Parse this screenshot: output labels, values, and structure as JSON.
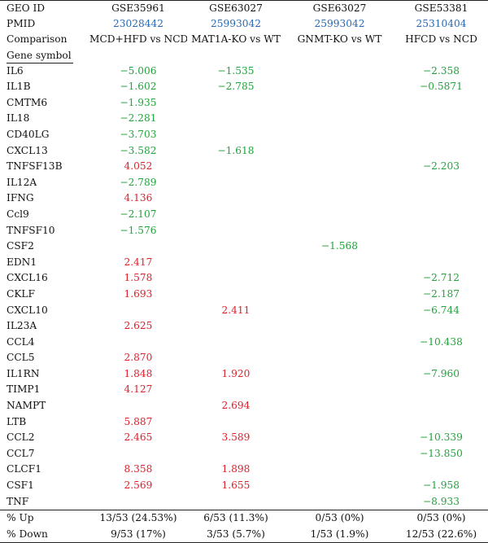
{
  "header": {
    "row_labels": [
      "GEO ID",
      "PMID",
      "Comparison"
    ],
    "columns": [
      {
        "geo": "GSE35961",
        "pmid": "23028442",
        "comparison": "MCD+HFD vs NCD"
      },
      {
        "geo": "GSE63027",
        "pmid": "25993042",
        "comparison": "MAT1A-KO vs WT"
      },
      {
        "geo": "GSE63027",
        "pmid": "25993042",
        "comparison": "GNMT-KO vs WT"
      },
      {
        "geo": "GSE53381",
        "pmid": "25310404",
        "comparison": "HFCD vs NCD"
      }
    ],
    "gene_symbol_label": "Gene symbol"
  },
  "colors": {
    "up": "#e0202a",
    "down": "#23a33c",
    "pmid": "#2a6ab0"
  },
  "genes": [
    {
      "symbol": "IL6",
      "values": [
        "−5.006",
        "−1.535",
        "",
        "−2.358"
      ]
    },
    {
      "symbol": "IL1B",
      "values": [
        "−1.602",
        "−2.785",
        "",
        "−0.5871"
      ]
    },
    {
      "symbol": "CMTM6",
      "values": [
        "−1.935",
        "",
        "",
        ""
      ]
    },
    {
      "symbol": "IL18",
      "values": [
        "−2.281",
        "",
        "",
        ""
      ]
    },
    {
      "symbol": "CD40LG",
      "values": [
        "−3.703",
        "",
        "",
        ""
      ]
    },
    {
      "symbol": "CXCL13",
      "values": [
        "−3.582",
        "−1.618",
        "",
        ""
      ]
    },
    {
      "symbol": "TNFSF13B",
      "values": [
        "4.052",
        "",
        "",
        "−2.203"
      ]
    },
    {
      "symbol": "IL12A",
      "values": [
        "−2.789",
        "",
        "",
        ""
      ]
    },
    {
      "symbol": "IFNG",
      "values": [
        "4.136",
        "",
        "",
        ""
      ]
    },
    {
      "symbol": "Ccl9",
      "values": [
        "−2.107",
        "",
        "",
        ""
      ]
    },
    {
      "symbol": "TNFSF10",
      "values": [
        "−1.576",
        "",
        "",
        ""
      ]
    },
    {
      "symbol": "CSF2",
      "values": [
        "",
        "",
        "−1.568",
        ""
      ]
    },
    {
      "symbol": "EDN1",
      "values": [
        "2.417",
        "",
        "",
        ""
      ]
    },
    {
      "symbol": "CXCL16",
      "values": [
        "1.578",
        "",
        "",
        "−2.712"
      ]
    },
    {
      "symbol": "CKLF",
      "values": [
        "1.693",
        "",
        "",
        "−2.187"
      ]
    },
    {
      "symbol": "CXCL10",
      "values": [
        "",
        "2.411",
        "",
        "−6.744"
      ]
    },
    {
      "symbol": "IL23A",
      "values": [
        "2.625",
        "",
        "",
        ""
      ]
    },
    {
      "symbol": "CCL4",
      "values": [
        "",
        "",
        "",
        "−10.438"
      ]
    },
    {
      "symbol": "CCL5",
      "values": [
        "2.870",
        "",
        "",
        ""
      ]
    },
    {
      "symbol": "IL1RN",
      "values": [
        "1.848",
        "1.920",
        "",
        "−7.960"
      ]
    },
    {
      "symbol": "TIMP1",
      "values": [
        "4.127",
        "",
        "",
        ""
      ]
    },
    {
      "symbol": "NAMPT",
      "values": [
        "",
        "2.694",
        "",
        ""
      ]
    },
    {
      "symbol": "LTB",
      "values": [
        "5.887",
        "",
        "",
        ""
      ]
    },
    {
      "symbol": "CCL2",
      "values": [
        "2.465",
        "3.589",
        "",
        "−10.339"
      ]
    },
    {
      "symbol": "CCL7",
      "values": [
        "",
        "",
        "",
        "−13.850"
      ]
    },
    {
      "symbol": "CLCF1",
      "values": [
        "8.358",
        "1.898",
        "",
        ""
      ]
    },
    {
      "symbol": "CSF1",
      "values": [
        "2.569",
        "1.655",
        "",
        "−1.958"
      ]
    },
    {
      "symbol": "TNF",
      "values": [
        "",
        "",
        "",
        "−8.933"
      ]
    }
  ],
  "summary": [
    {
      "label": "% Up",
      "values": [
        "13/53 (24.53%)",
        "6/53 (11.3%)",
        "0/53 (0%)",
        "0/53 (0%)"
      ]
    },
    {
      "label": "% Down",
      "values": [
        "9/53 (17%)",
        "3/53 (5.7%)",
        "1/53 (1.9%)",
        "12/53 (22.6%)"
      ]
    }
  ]
}
